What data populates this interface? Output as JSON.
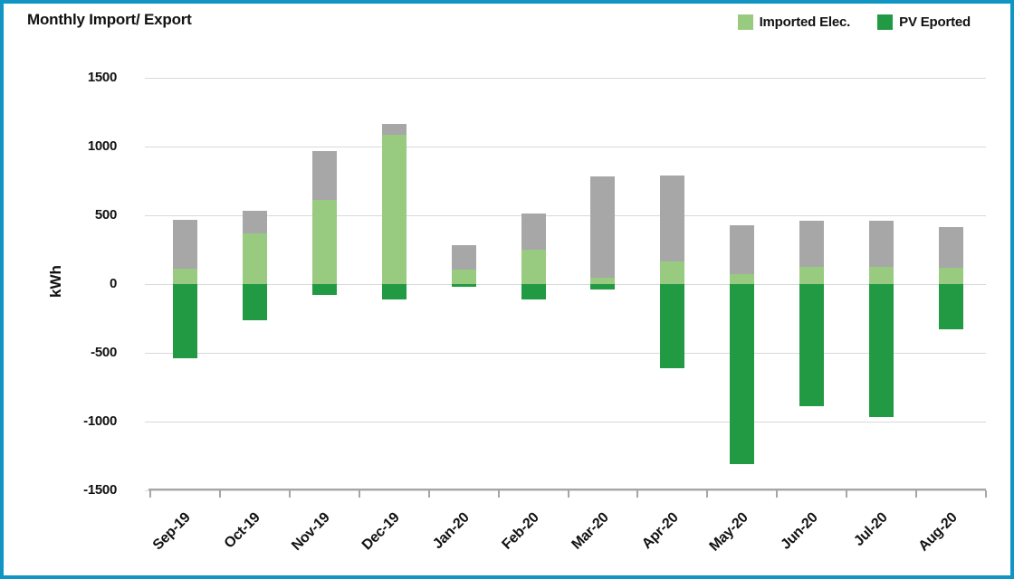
{
  "window": {
    "title": "Monthly Import/ Export"
  },
  "legend": {
    "items": [
      {
        "label": "Imported Elec.",
        "color": "#98cb80"
      },
      {
        "label": "PV Eported",
        "color": "#229a43"
      }
    ]
  },
  "colors": {
    "border": "#1195c2",
    "gridline": "#d9d9d9",
    "axis": "#a6a6a6",
    "text": "#111111",
    "imported": "#98cb80",
    "unlabeled_gray": "#a7a7a7",
    "pv_exported": "#229a43"
  },
  "chart_data": {
    "type": "bar",
    "stacked": true,
    "title": "Monthly Import/ Export",
    "xlabel": "",
    "ylabel": "kWh",
    "ylim": [
      -1500,
      1500
    ],
    "yticks": [
      1500,
      1000,
      500,
      0,
      -500,
      -1000,
      -1500
    ],
    "grid": "horizontal",
    "legend_position": "top-right",
    "categories": [
      "Sep-19",
      "Oct-19",
      "Nov-19",
      "Dec-19",
      "Jan-20",
      "Feb-20",
      "Mar-20",
      "Apr-20",
      "May-20",
      "Jun-20",
      "Jul-20",
      "Aug-20"
    ],
    "series": [
      {
        "name": "Imported Elec.",
        "color": "#98cb80",
        "in_legend": true,
        "values": [
          110,
          370,
          610,
          1085,
          105,
          250,
          45,
          165,
          75,
          125,
          125,
          120
        ]
      },
      {
        "name": "",
        "color": "#a7a7a7",
        "in_legend": false,
        "values": [
          355,
          160,
          355,
          80,
          180,
          265,
          740,
          625,
          355,
          335,
          335,
          295
        ]
      },
      {
        "name": "PV Eported",
        "color": "#229a43",
        "in_legend": true,
        "values": [
          -540,
          -260,
          -80,
          -110,
          -20,
          -110,
          -40,
          -610,
          -1310,
          -890,
          -965,
          -330
        ]
      }
    ]
  }
}
